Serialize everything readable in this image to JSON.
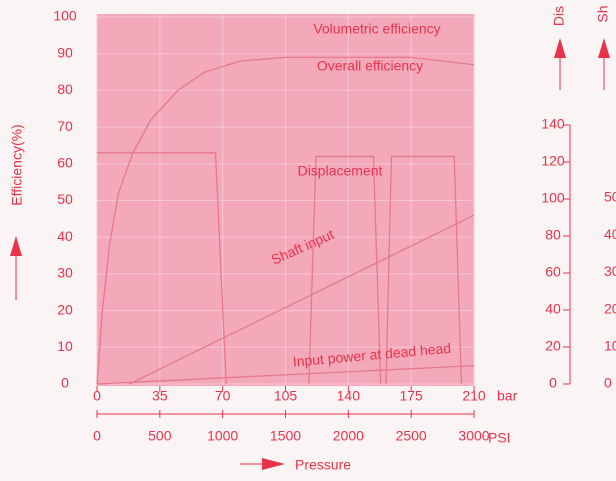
{
  "chart_data": {
    "type": "line",
    "ylabel": "Efficiency(%)",
    "ylim": [
      0,
      100
    ],
    "yticks": [
      0,
      10,
      20,
      30,
      40,
      50,
      60,
      70,
      80,
      90,
      100
    ],
    "xlim": [
      0,
      210
    ],
    "xticks": [
      0,
      35,
      70,
      105,
      140,
      175,
      210
    ],
    "xunit": "bar",
    "x2lim": [
      0,
      3000
    ],
    "x2ticks": [
      0,
      500,
      1000,
      1500,
      2000,
      2500,
      3000
    ],
    "x2unit": "PSI",
    "xlabel": "Pressure",
    "y2label": "Dis",
    "y2lim": [
      0,
      140
    ],
    "y2ticks": [
      0,
      20,
      40,
      60,
      80,
      100,
      120,
      140
    ],
    "y3label": "Sh",
    "y3lim": [
      0,
      50
    ],
    "y3ticks": [
      0,
      10,
      20,
      30,
      40,
      50
    ],
    "grid": true,
    "annotations": [
      "Volumetric efficiency"
    ],
    "series": [
      {
        "name": "Overall efficiency",
        "color": "#e5788f",
        "x": [
          0,
          3,
          7,
          12,
          20,
          30,
          45,
          60,
          80,
          105,
          140,
          175,
          210
        ],
        "values": [
          0,
          20,
          38,
          52,
          63,
          72,
          80,
          85,
          88,
          89,
          89,
          89,
          87
        ]
      },
      {
        "name": "Displacement",
        "color": "#e5788f",
        "x": [
          0,
          66,
          72,
          72,
          118,
          122,
          154,
          158,
          158,
          161,
          164,
          199,
          203
        ],
        "values": [
          63,
          63,
          0,
          null,
          0,
          62,
          62,
          0,
          null,
          0,
          62,
          62,
          0
        ]
      },
      {
        "name": "Shaft input",
        "color": "#e5788f",
        "x": [
          18,
          210
        ],
        "values": [
          0,
          46
        ]
      },
      {
        "name": "Input power at dead head",
        "color": "#e5788f",
        "x": [
          0,
          210
        ],
        "values": [
          0,
          5
        ]
      }
    ]
  }
}
